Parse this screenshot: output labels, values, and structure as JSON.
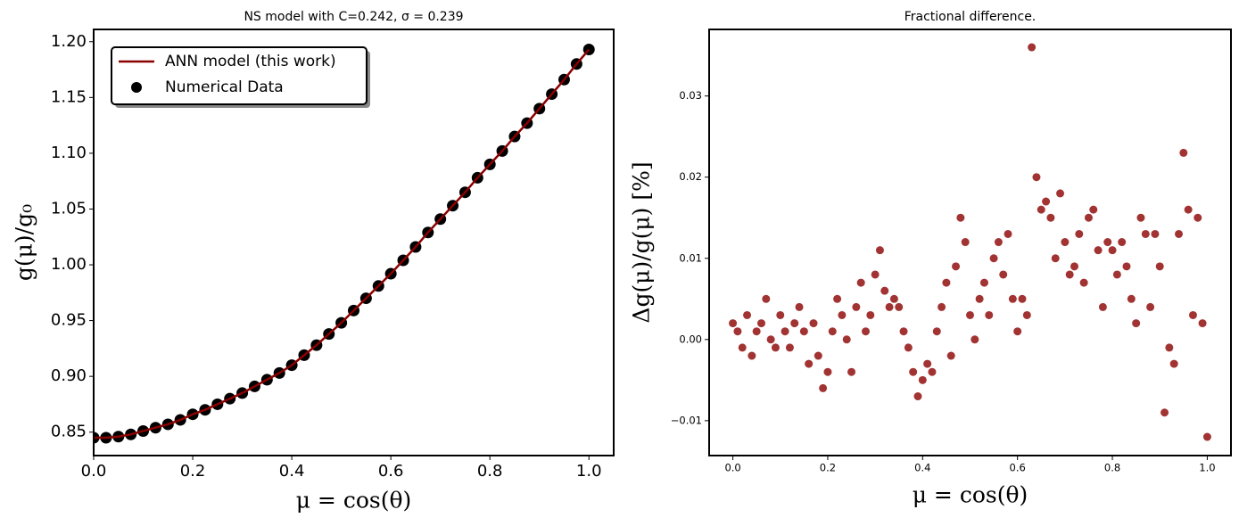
{
  "chart_data": [
    {
      "type": "line",
      "title": "NS model with C=0.242, σ = 0.239",
      "xlabel": "μ = cos(θ)",
      "ylabel": "g(μ)/g₀",
      "x": [
        0,
        0.025,
        0.05,
        0.075,
        0.1,
        0.125,
        0.15,
        0.175,
        0.2,
        0.225,
        0.25,
        0.275,
        0.3,
        0.325,
        0.35,
        0.375,
        0.4,
        0.425,
        0.45,
        0.475,
        0.5,
        0.525,
        0.55,
        0.575,
        0.6,
        0.625,
        0.65,
        0.675,
        0.7,
        0.725,
        0.75,
        0.775,
        0.8,
        0.825,
        0.85,
        0.875,
        0.9,
        0.925,
        0.95,
        0.975,
        1
      ],
      "series": [
        {
          "name": "ANN model (this work)",
          "type": "line",
          "color": "#8b0000",
          "values": [
            0.845,
            0.845,
            0.846,
            0.848,
            0.851,
            0.854,
            0.857,
            0.861,
            0.866,
            0.87,
            0.875,
            0.88,
            0.885,
            0.891,
            0.897,
            0.903,
            0.91,
            0.919,
            0.928,
            0.938,
            0.948,
            0.959,
            0.97,
            0.981,
            0.992,
            1.004,
            1.016,
            1.029,
            1.041,
            1.053,
            1.065,
            1.078,
            1.09,
            1.102,
            1.115,
            1.127,
            1.14,
            1.153,
            1.166,
            1.18,
            1.193
          ]
        },
        {
          "name": "Numerical Data",
          "type": "scatter",
          "color": "#000000",
          "values": [
            0.845,
            0.845,
            0.846,
            0.848,
            0.851,
            0.854,
            0.857,
            0.861,
            0.866,
            0.87,
            0.875,
            0.88,
            0.885,
            0.891,
            0.897,
            0.903,
            0.91,
            0.919,
            0.928,
            0.938,
            0.948,
            0.959,
            0.97,
            0.981,
            0.992,
            1.004,
            1.016,
            1.029,
            1.041,
            1.053,
            1.065,
            1.078,
            1.09,
            1.102,
            1.115,
            1.127,
            1.14,
            1.153,
            1.166,
            1.18,
            1.193
          ]
        }
      ],
      "xlim": [
        0,
        1.05
      ],
      "ylim": [
        0.829,
        1.211
      ],
      "xticks": [
        {
          "value": 0,
          "label": "0.0"
        },
        0.2,
        0.4,
        0.6,
        0.8,
        {
          "value": 1,
          "label": "1.0"
        }
      ],
      "yticks": [
        0.85,
        {
          "value": 0.9,
          "label": "0.90"
        },
        0.95,
        {
          "value": 1,
          "label": "1.00"
        },
        1.05,
        {
          "value": 1.1,
          "label": "1.10"
        },
        1.15,
        {
          "value": 1.2,
          "label": "1.20"
        }
      ],
      "legend": "upper left"
    },
    {
      "type": "scatter",
      "title": "Fractional difference.",
      "xlabel": "μ = cos(θ)",
      "ylabel": "Δg(μ)/g(μ)  [%]",
      "color": "#8b0000",
      "x": [
        0.0,
        0.01,
        0.02,
        0.03,
        0.04,
        0.05,
        0.06,
        0.07,
        0.08,
        0.09,
        0.1,
        0.11,
        0.12,
        0.13,
        0.14,
        0.15,
        0.16,
        0.17,
        0.18,
        0.19,
        0.2,
        0.21,
        0.22,
        0.23,
        0.24,
        0.25,
        0.26,
        0.27,
        0.28,
        0.29,
        0.3,
        0.31,
        0.32,
        0.33,
        0.34,
        0.35,
        0.36,
        0.37,
        0.38,
        0.39,
        0.4,
        0.41,
        0.42,
        0.43,
        0.44,
        0.45,
        0.46,
        0.47,
        0.48,
        0.49,
        0.5,
        0.51,
        0.52,
        0.53,
        0.54,
        0.55,
        0.56,
        0.57,
        0.58,
        0.59,
        0.6,
        0.61,
        0.62,
        0.63,
        0.64,
        0.65,
        0.66,
        0.67,
        0.68,
        0.69,
        0.7,
        0.71,
        0.72,
        0.73,
        0.74,
        0.75,
        0.76,
        0.77,
        0.78,
        0.79,
        0.8,
        0.81,
        0.82,
        0.83,
        0.84,
        0.85,
        0.86,
        0.87,
        0.88,
        0.89,
        0.9,
        0.91,
        0.92,
        0.93,
        0.94,
        0.95,
        0.96,
        0.97,
        0.98,
        0.99,
        1.0
      ],
      "values": [
        0.002,
        0.001,
        -0.001,
        0.003,
        -0.002,
        0.001,
        0.002,
        0.005,
        0.0,
        -0.001,
        0.003,
        0.001,
        -0.001,
        0.002,
        0.004,
        0.001,
        -0.003,
        0.002,
        -0.002,
        -0.006,
        -0.004,
        0.001,
        0.005,
        0.003,
        0.0,
        -0.004,
        0.004,
        0.007,
        0.001,
        0.003,
        0.008,
        0.011,
        0.006,
        0.004,
        0.005,
        0.004,
        0.001,
        -0.001,
        -0.004,
        -0.007,
        -0.005,
        -0.003,
        -0.004,
        0.001,
        0.004,
        0.007,
        -0.002,
        0.009,
        0.015,
        0.012,
        0.003,
        0.0,
        0.005,
        0.007,
        0.003,
        0.01,
        0.012,
        0.008,
        0.013,
        0.005,
        0.001,
        0.005,
        0.003,
        0.036,
        0.02,
        0.016,
        0.017,
        0.015,
        0.01,
        0.018,
        0.012,
        0.008,
        0.009,
        0.013,
        0.007,
        0.015,
        0.016,
        0.011,
        0.004,
        0.012,
        0.011,
        0.008,
        0.012,
        0.009,
        0.005,
        0.002,
        0.015,
        0.013,
        0.004,
        0.013,
        0.009,
        -0.009,
        -0.001,
        -0.003,
        0.013,
        0.023,
        0.016,
        0.003,
        0.015,
        0.002,
        -0.012
      ],
      "xlim": [
        -0.05,
        1.05
      ],
      "ylim": [
        -0.0143,
        0.0382
      ],
      "xticks": [
        {
          "value": 0,
          "label": "0.0"
        },
        0.2,
        0.4,
        0.6,
        0.8,
        {
          "value": 1,
          "label": "1.0"
        }
      ],
      "yticks": [
        {
          "value": -0.01,
          "label": "−0.01"
        },
        {
          "value": 0,
          "label": "0.00"
        },
        0.01,
        0.02,
        0.03
      ]
    }
  ]
}
